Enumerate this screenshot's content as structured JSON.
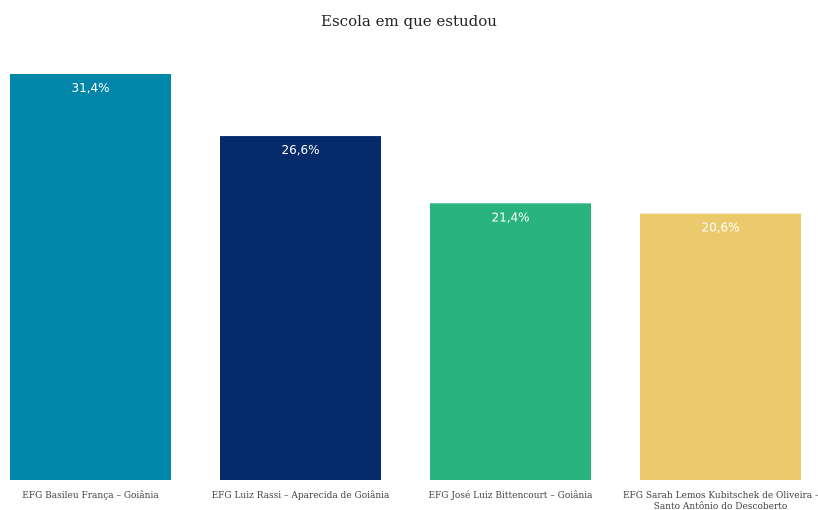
{
  "chart_data": {
    "type": "bar",
    "title": "Escola em que estudou",
    "xlabel": "",
    "ylabel": "",
    "ylim": [
      0,
      35
    ],
    "grid": false,
    "categories": [
      [
        "EFG Basileu França – Goiânia"
      ],
      [
        "EFG Luiz Rassi – Aparecida de Goiânia"
      ],
      [
        "EFG José Luiz Bittencourt – Goiânia"
      ],
      [
        "EFG Sarah Lemos Kubitschek de Oliveira -",
        "Santo Antônio do Descoberto"
      ]
    ],
    "values": [
      31.4,
      26.6,
      21.4,
      20.6
    ],
    "value_labels": [
      "31,4%",
      "26,6%",
      "21,4%",
      "20,6%"
    ],
    "colors": [
      "#0086a8",
      "#052b6b",
      "#2ab47d",
      "#ebc96d"
    ]
  }
}
